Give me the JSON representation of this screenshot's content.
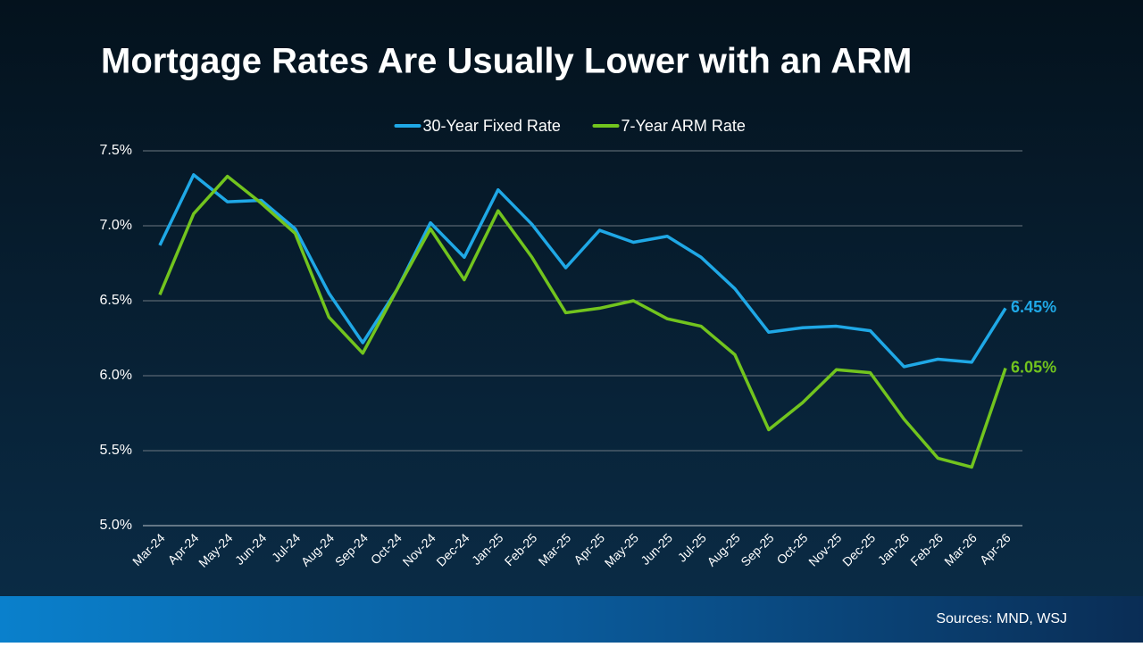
{
  "chart_data": {
    "type": "line",
    "title": "Mortgage Rates Are Usually Lower with an ARM",
    "source": "Sources: MND, WSJ",
    "categories": [
      "Mar-24",
      "Apr-24",
      "May-24",
      "Jun-24",
      "Jul-24",
      "Aug-24",
      "Sep-24",
      "Oct-24",
      "Nov-24",
      "Dec-24",
      "Jan-25",
      "Feb-25",
      "Mar-25",
      "Apr-25",
      "May-25",
      "Jun-25",
      "Jul-25",
      "Aug-25",
      "Sep-25",
      "Oct-25",
      "Nov-25",
      "Dec-25",
      "Jan-26",
      "Feb-26",
      "Mar-26",
      "Apr-26"
    ],
    "series": [
      {
        "name": "30-Year Fixed Rate",
        "color": "#1fa8e6",
        "values": [
          6.87,
          7.34,
          7.16,
          7.17,
          6.98,
          6.55,
          6.22,
          6.57,
          7.02,
          6.79,
          7.24,
          7.01,
          6.72,
          6.97,
          6.89,
          6.93,
          6.79,
          6.58,
          6.29,
          6.32,
          6.33,
          6.3,
          6.06,
          6.11,
          6.09,
          6.45
        ],
        "value_labels": [
          null,
          null,
          null,
          null,
          null,
          null,
          null,
          null,
          null,
          null,
          null,
          null,
          null,
          null,
          null,
          null,
          null,
          null,
          null,
          null,
          null,
          null,
          null,
          null,
          null,
          "6.45%"
        ]
      },
      {
        "name": "7-Year ARM Rate",
        "color": "#72c41e",
        "values": [
          6.54,
          7.08,
          7.33,
          7.15,
          6.95,
          6.39,
          6.15,
          6.57,
          6.98,
          6.64,
          7.1,
          6.79,
          6.42,
          6.45,
          6.5,
          6.38,
          6.33,
          6.14,
          5.64,
          5.82,
          6.04,
          6.02,
          5.71,
          5.45,
          5.39,
          6.05
        ],
        "value_labels": [
          null,
          null,
          null,
          null,
          null,
          null,
          null,
          null,
          null,
          null,
          null,
          null,
          null,
          null,
          null,
          null,
          null,
          null,
          null,
          null,
          null,
          null,
          null,
          null,
          null,
          "6.05%"
        ]
      }
    ],
    "ylim": [
      5.0,
      7.5
    ],
    "yticks": [
      {
        "value": 5.0,
        "label": "5.0%"
      },
      {
        "value": 5.5,
        "label": "5.5%"
      },
      {
        "value": 6.0,
        "label": "6.0%"
      },
      {
        "value": 6.5,
        "label": "6.5%"
      },
      {
        "value": 7.0,
        "label": "7.0%"
      },
      {
        "value": 7.5,
        "label": "7.5%"
      }
    ],
    "grid": true,
    "legend": "top"
  }
}
